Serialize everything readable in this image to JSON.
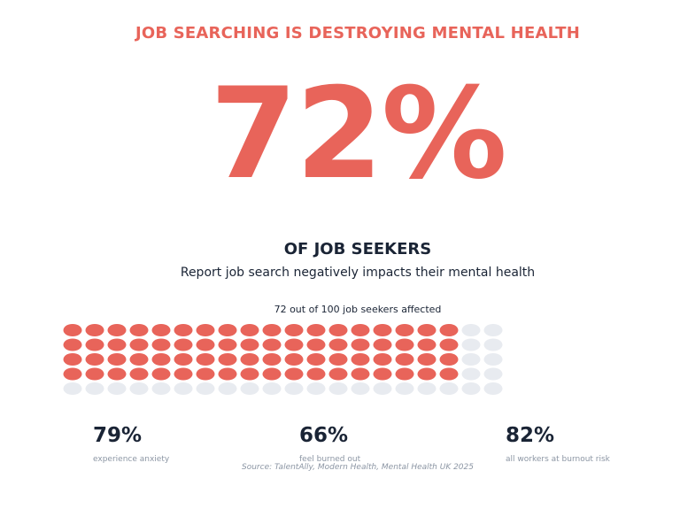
{
  "headline": "JOB SEARCHING IS DESTROYING MENTAL HEALTH",
  "big_stat": "72%",
  "subhead": "OF JOB SEEKERS",
  "description": "Report job search negatively impacts their mental health",
  "chart_data": {
    "type": "waffle",
    "caption": "72 out of 100 job seekers affected",
    "total": 100,
    "filled": 72,
    "columns": 20,
    "rows": 5,
    "colors": {
      "filled": "#e8645a",
      "empty": "#e8ebf0"
    }
  },
  "stats": [
    {
      "value": "79%",
      "label": "experience anxiety"
    },
    {
      "value": "66%",
      "label": "feel burned out"
    },
    {
      "value": "82%",
      "label": "all workers at burnout risk"
    }
  ],
  "source": "Source: TalentAlly, Modern Health, Mental Health UK 2025"
}
